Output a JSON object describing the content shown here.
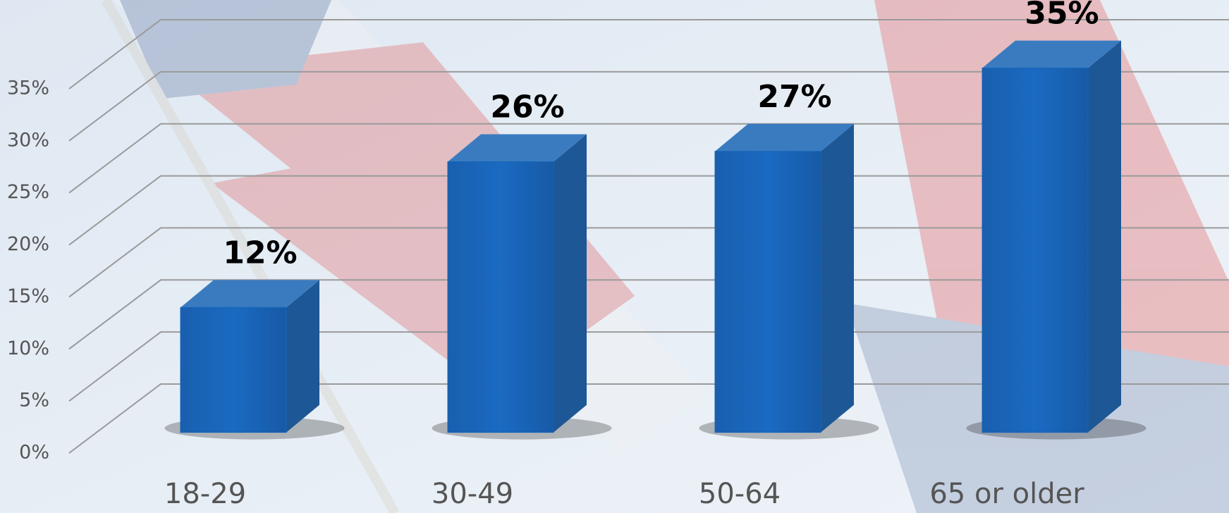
{
  "chart_data": {
    "type": "bar3d",
    "categories": [
      "18-29",
      "30-49",
      "50-64",
      "65 or older"
    ],
    "values": [
      12,
      26,
      27,
      35
    ],
    "value_labels": [
      "12%",
      "26%",
      "27%",
      "35%"
    ],
    "color": "#1565b8",
    "ylim": [
      0,
      35
    ],
    "yticks": [
      {
        "value": 0,
        "label": "0%"
      },
      {
        "value": 5,
        "label": "5%"
      },
      {
        "value": 10,
        "label": "10%"
      },
      {
        "value": 15,
        "label": "15%"
      },
      {
        "value": 20,
        "label": "20%"
      },
      {
        "value": 25,
        "label": "25%"
      },
      {
        "value": 30,
        "label": "30%"
      },
      {
        "value": 35,
        "label": "35%"
      }
    ],
    "grid": true
  }
}
